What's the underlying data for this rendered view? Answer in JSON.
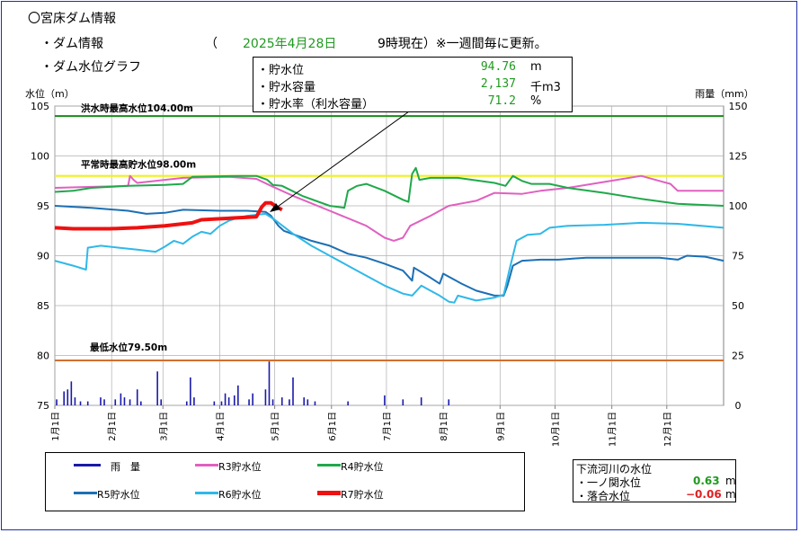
{
  "header": {
    "title": "〇宮床ダム情報",
    "subtitle_dam": "・ダム情報",
    "date_open": "（",
    "date": "2025年4月28日",
    "time": "9時現在）※一週間毎に更新。",
    "subtitle_graph": "・ダム水位グラフ"
  },
  "info_box": {
    "rows": [
      {
        "label": "・貯水位",
        "value": "94.76",
        "unit": "m"
      },
      {
        "label": "・貯水容量",
        "value": "2,137",
        "unit": "千m3"
      },
      {
        "label": "・貯水率（利水容量）",
        "value": "71.2",
        "unit": "%"
      }
    ]
  },
  "colors": {
    "rain": "#1a1aa8",
    "r3": "#e060c0",
    "r4": "#20a84a",
    "r5": "#1c6fb4",
    "r6": "#30b8e8",
    "r7": "#ee1111",
    "flood": "#1a8a1a",
    "normal": "#f0f020",
    "min": "#d07030",
    "negative": "#e02020",
    "positive": "#1f9a1f"
  },
  "legend": {
    "rain": "雨　量",
    "r3": "R3貯水位",
    "r4": "R4貯水位",
    "r5": "R5貯水位",
    "r6": "R6貯水位",
    "r7": "R7貯水位"
  },
  "river": {
    "title": "下流河川の水位",
    "rows": [
      {
        "label": "・一ノ関水位",
        "value": "0.63",
        "unit": "m"
      },
      {
        "label": "・落合水位",
        "value": "−0.06",
        "unit": "m"
      }
    ]
  },
  "chart_data": {
    "type": "line",
    "ylabel_left": "水位（m）",
    "ylabel_right": "雨量（mm）",
    "ylim_left": [
      75,
      105
    ],
    "ylim_right": [
      0,
      150
    ],
    "yticks_left": [
      "75",
      "80",
      "85",
      "90",
      "95",
      "100",
      "105"
    ],
    "yticks_right": [
      "0",
      "25",
      "50",
      "75",
      "100",
      "125",
      "150"
    ],
    "x_domain": [
      0,
      365
    ],
    "month_starts": [
      0,
      31,
      59,
      90,
      120,
      151,
      181,
      212,
      243,
      273,
      304,
      334
    ],
    "month_labels": [
      "1月1日",
      "2月1日",
      "3月1日",
      "4月1日",
      "5月1日",
      "6月1日",
      "7月1日",
      "8月1日",
      "9月1日",
      "10月1日",
      "11月1日",
      "12月1日"
    ],
    "reference_lines": [
      {
        "name": "flood",
        "label": "洪水時最高水位104.00m",
        "value": 104.0
      },
      {
        "name": "normal",
        "label": "平常時最高貯水位98.00m",
        "value": 98.0
      },
      {
        "name": "min",
        "label": "最低水位79.50m",
        "value": 79.5
      }
    ],
    "series": [
      {
        "name": "R3貯水位",
        "key": "r3",
        "points": [
          [
            0,
            96.8
          ],
          [
            20,
            96.9
          ],
          [
            40,
            97.0
          ],
          [
            41,
            98.0
          ],
          [
            43,
            97.6
          ],
          [
            45,
            97.3
          ],
          [
            60,
            97.6
          ],
          [
            70,
            97.8
          ],
          [
            95,
            97.9
          ],
          [
            110,
            97.7
          ],
          [
            118,
            97.0
          ],
          [
            130,
            96.0
          ],
          [
            150,
            94.5
          ],
          [
            170,
            93.0
          ],
          [
            180,
            91.8
          ],
          [
            185,
            91.5
          ],
          [
            190,
            91.8
          ],
          [
            194,
            93.0
          ],
          [
            205,
            94.0
          ],
          [
            215,
            95.0
          ],
          [
            230,
            95.5
          ],
          [
            240,
            96.3
          ],
          [
            255,
            96.2
          ],
          [
            265,
            96.5
          ],
          [
            280,
            96.8
          ],
          [
            300,
            97.4
          ],
          [
            320,
            98.0
          ],
          [
            330,
            97.5
          ],
          [
            336,
            97.2
          ],
          [
            340,
            96.5
          ],
          [
            365,
            96.5
          ]
        ]
      },
      {
        "name": "R4貯水位",
        "key": "r4",
        "points": [
          [
            0,
            96.4
          ],
          [
            10,
            96.5
          ],
          [
            20,
            96.8
          ],
          [
            30,
            96.9
          ],
          [
            40,
            97.0
          ],
          [
            60,
            97.1
          ],
          [
            70,
            97.2
          ],
          [
            75,
            97.9
          ],
          [
            100,
            98.0
          ],
          [
            110,
            98.0
          ],
          [
            116,
            97.6
          ],
          [
            119,
            97.1
          ],
          [
            124,
            97.0
          ],
          [
            135,
            96.0
          ],
          [
            150,
            95.0
          ],
          [
            158,
            94.8
          ],
          [
            160,
            96.5
          ],
          [
            165,
            97.0
          ],
          [
            170,
            97.2
          ],
          [
            180,
            96.5
          ],
          [
            190,
            95.6
          ],
          [
            193,
            95.4
          ],
          [
            195,
            98.2
          ],
          [
            197,
            98.8
          ],
          [
            199,
            97.6
          ],
          [
            205,
            97.8
          ],
          [
            220,
            97.8
          ],
          [
            240,
            97.3
          ],
          [
            246,
            97.0
          ],
          [
            250,
            98.0
          ],
          [
            255,
            97.5
          ],
          [
            260,
            97.2
          ],
          [
            270,
            97.2
          ],
          [
            280,
            96.8
          ],
          [
            300,
            96.3
          ],
          [
            320,
            95.7
          ],
          [
            340,
            95.2
          ],
          [
            365,
            95.0
          ]
        ]
      },
      {
        "name": "R5貯水位",
        "key": "r5",
        "points": [
          [
            0,
            95.0
          ],
          [
            20,
            94.8
          ],
          [
            40,
            94.5
          ],
          [
            50,
            94.2
          ],
          [
            60,
            94.3
          ],
          [
            70,
            94.6
          ],
          [
            90,
            94.5
          ],
          [
            105,
            94.5
          ],
          [
            115,
            94.4
          ],
          [
            118,
            94.0
          ],
          [
            122,
            93.0
          ],
          [
            125,
            92.5
          ],
          [
            140,
            91.5
          ],
          [
            150,
            91.0
          ],
          [
            160,
            90.2
          ],
          [
            170,
            89.8
          ],
          [
            180,
            89.2
          ],
          [
            190,
            88.5
          ],
          [
            195,
            87.5
          ],
          [
            196,
            88.8
          ],
          [
            205,
            87.8
          ],
          [
            210,
            87.2
          ],
          [
            212,
            88.2
          ],
          [
            222,
            87.2
          ],
          [
            230,
            86.5
          ],
          [
            240,
            86.0
          ],
          [
            245,
            86.0
          ],
          [
            247,
            87.0
          ],
          [
            250,
            89.0
          ],
          [
            255,
            89.5
          ],
          [
            265,
            89.6
          ],
          [
            275,
            89.6
          ],
          [
            290,
            89.8
          ],
          [
            310,
            89.8
          ],
          [
            330,
            89.8
          ],
          [
            340,
            89.6
          ],
          [
            345,
            90.0
          ],
          [
            355,
            89.9
          ],
          [
            365,
            89.5
          ]
        ]
      },
      {
        "name": "R6貯水位",
        "key": "r6",
        "points": [
          [
            0,
            89.5
          ],
          [
            10,
            89.0
          ],
          [
            17,
            88.6
          ],
          [
            18,
            90.8
          ],
          [
            25,
            91.0
          ],
          [
            35,
            90.8
          ],
          [
            45,
            90.6
          ],
          [
            55,
            90.4
          ],
          [
            60,
            90.9
          ],
          [
            65,
            91.5
          ],
          [
            70,
            91.2
          ],
          [
            75,
            91.9
          ],
          [
            80,
            92.4
          ],
          [
            85,
            92.2
          ],
          [
            90,
            93.0
          ],
          [
            95,
            93.5
          ],
          [
            100,
            93.8
          ],
          [
            105,
            94.0
          ],
          [
            115,
            94.2
          ],
          [
            120,
            93.6
          ],
          [
            130,
            92.2
          ],
          [
            140,
            91.0
          ],
          [
            150,
            90.0
          ],
          [
            160,
            89.0
          ],
          [
            170,
            88.0
          ],
          [
            180,
            87.0
          ],
          [
            190,
            86.2
          ],
          [
            195,
            86.0
          ],
          [
            200,
            87.0
          ],
          [
            205,
            86.5
          ],
          [
            210,
            86.0
          ],
          [
            215,
            85.4
          ],
          [
            218,
            85.3
          ],
          [
            220,
            86.0
          ],
          [
            230,
            85.5
          ],
          [
            240,
            85.8
          ],
          [
            245,
            86.1
          ],
          [
            248,
            88.5
          ],
          [
            252,
            91.5
          ],
          [
            258,
            92.1
          ],
          [
            265,
            92.2
          ],
          [
            270,
            92.8
          ],
          [
            280,
            93.0
          ],
          [
            300,
            93.1
          ],
          [
            320,
            93.3
          ],
          [
            340,
            93.2
          ],
          [
            365,
            92.8
          ]
        ]
      },
      {
        "name": "R7貯水位",
        "key": "r7",
        "points": [
          [
            0,
            92.8
          ],
          [
            10,
            92.7
          ],
          [
            30,
            92.7
          ],
          [
            45,
            92.8
          ],
          [
            60,
            93.0
          ],
          [
            75,
            93.3
          ],
          [
            80,
            93.6
          ],
          [
            90,
            93.7
          ],
          [
            100,
            93.8
          ],
          [
            110,
            93.9
          ],
          [
            113,
            94.9
          ],
          [
            115,
            95.3
          ],
          [
            118,
            95.3
          ],
          [
            121,
            94.9
          ],
          [
            124,
            94.6
          ]
        ]
      }
    ],
    "rain": {
      "name": "雨量",
      "points": [
        [
          1,
          3
        ],
        [
          5,
          7
        ],
        [
          7,
          8
        ],
        [
          9,
          12
        ],
        [
          11,
          4
        ],
        [
          14,
          2
        ],
        [
          18,
          2
        ],
        [
          25,
          4
        ],
        [
          27,
          3
        ],
        [
          33,
          3
        ],
        [
          36,
          6
        ],
        [
          38,
          4
        ],
        [
          41,
          3
        ],
        [
          45,
          8
        ],
        [
          47,
          2
        ],
        [
          56,
          17
        ],
        [
          58,
          3
        ],
        [
          72,
          2
        ],
        [
          74,
          14
        ],
        [
          76,
          4
        ],
        [
          87,
          2
        ],
        [
          91,
          2
        ],
        [
          93,
          6
        ],
        [
          95,
          4
        ],
        [
          98,
          5
        ],
        [
          100,
          10
        ],
        [
          106,
          3
        ],
        [
          108,
          6
        ],
        [
          115,
          8
        ],
        [
          117,
          22
        ],
        [
          119,
          3
        ],
        [
          124,
          4
        ],
        [
          128,
          3
        ],
        [
          130,
          14
        ],
        [
          136,
          4
        ],
        [
          138,
          3
        ],
        [
          142,
          2
        ],
        [
          160,
          2
        ],
        [
          180,
          5
        ],
        [
          190,
          3
        ],
        [
          200,
          4
        ],
        [
          215,
          3
        ]
      ]
    }
  }
}
